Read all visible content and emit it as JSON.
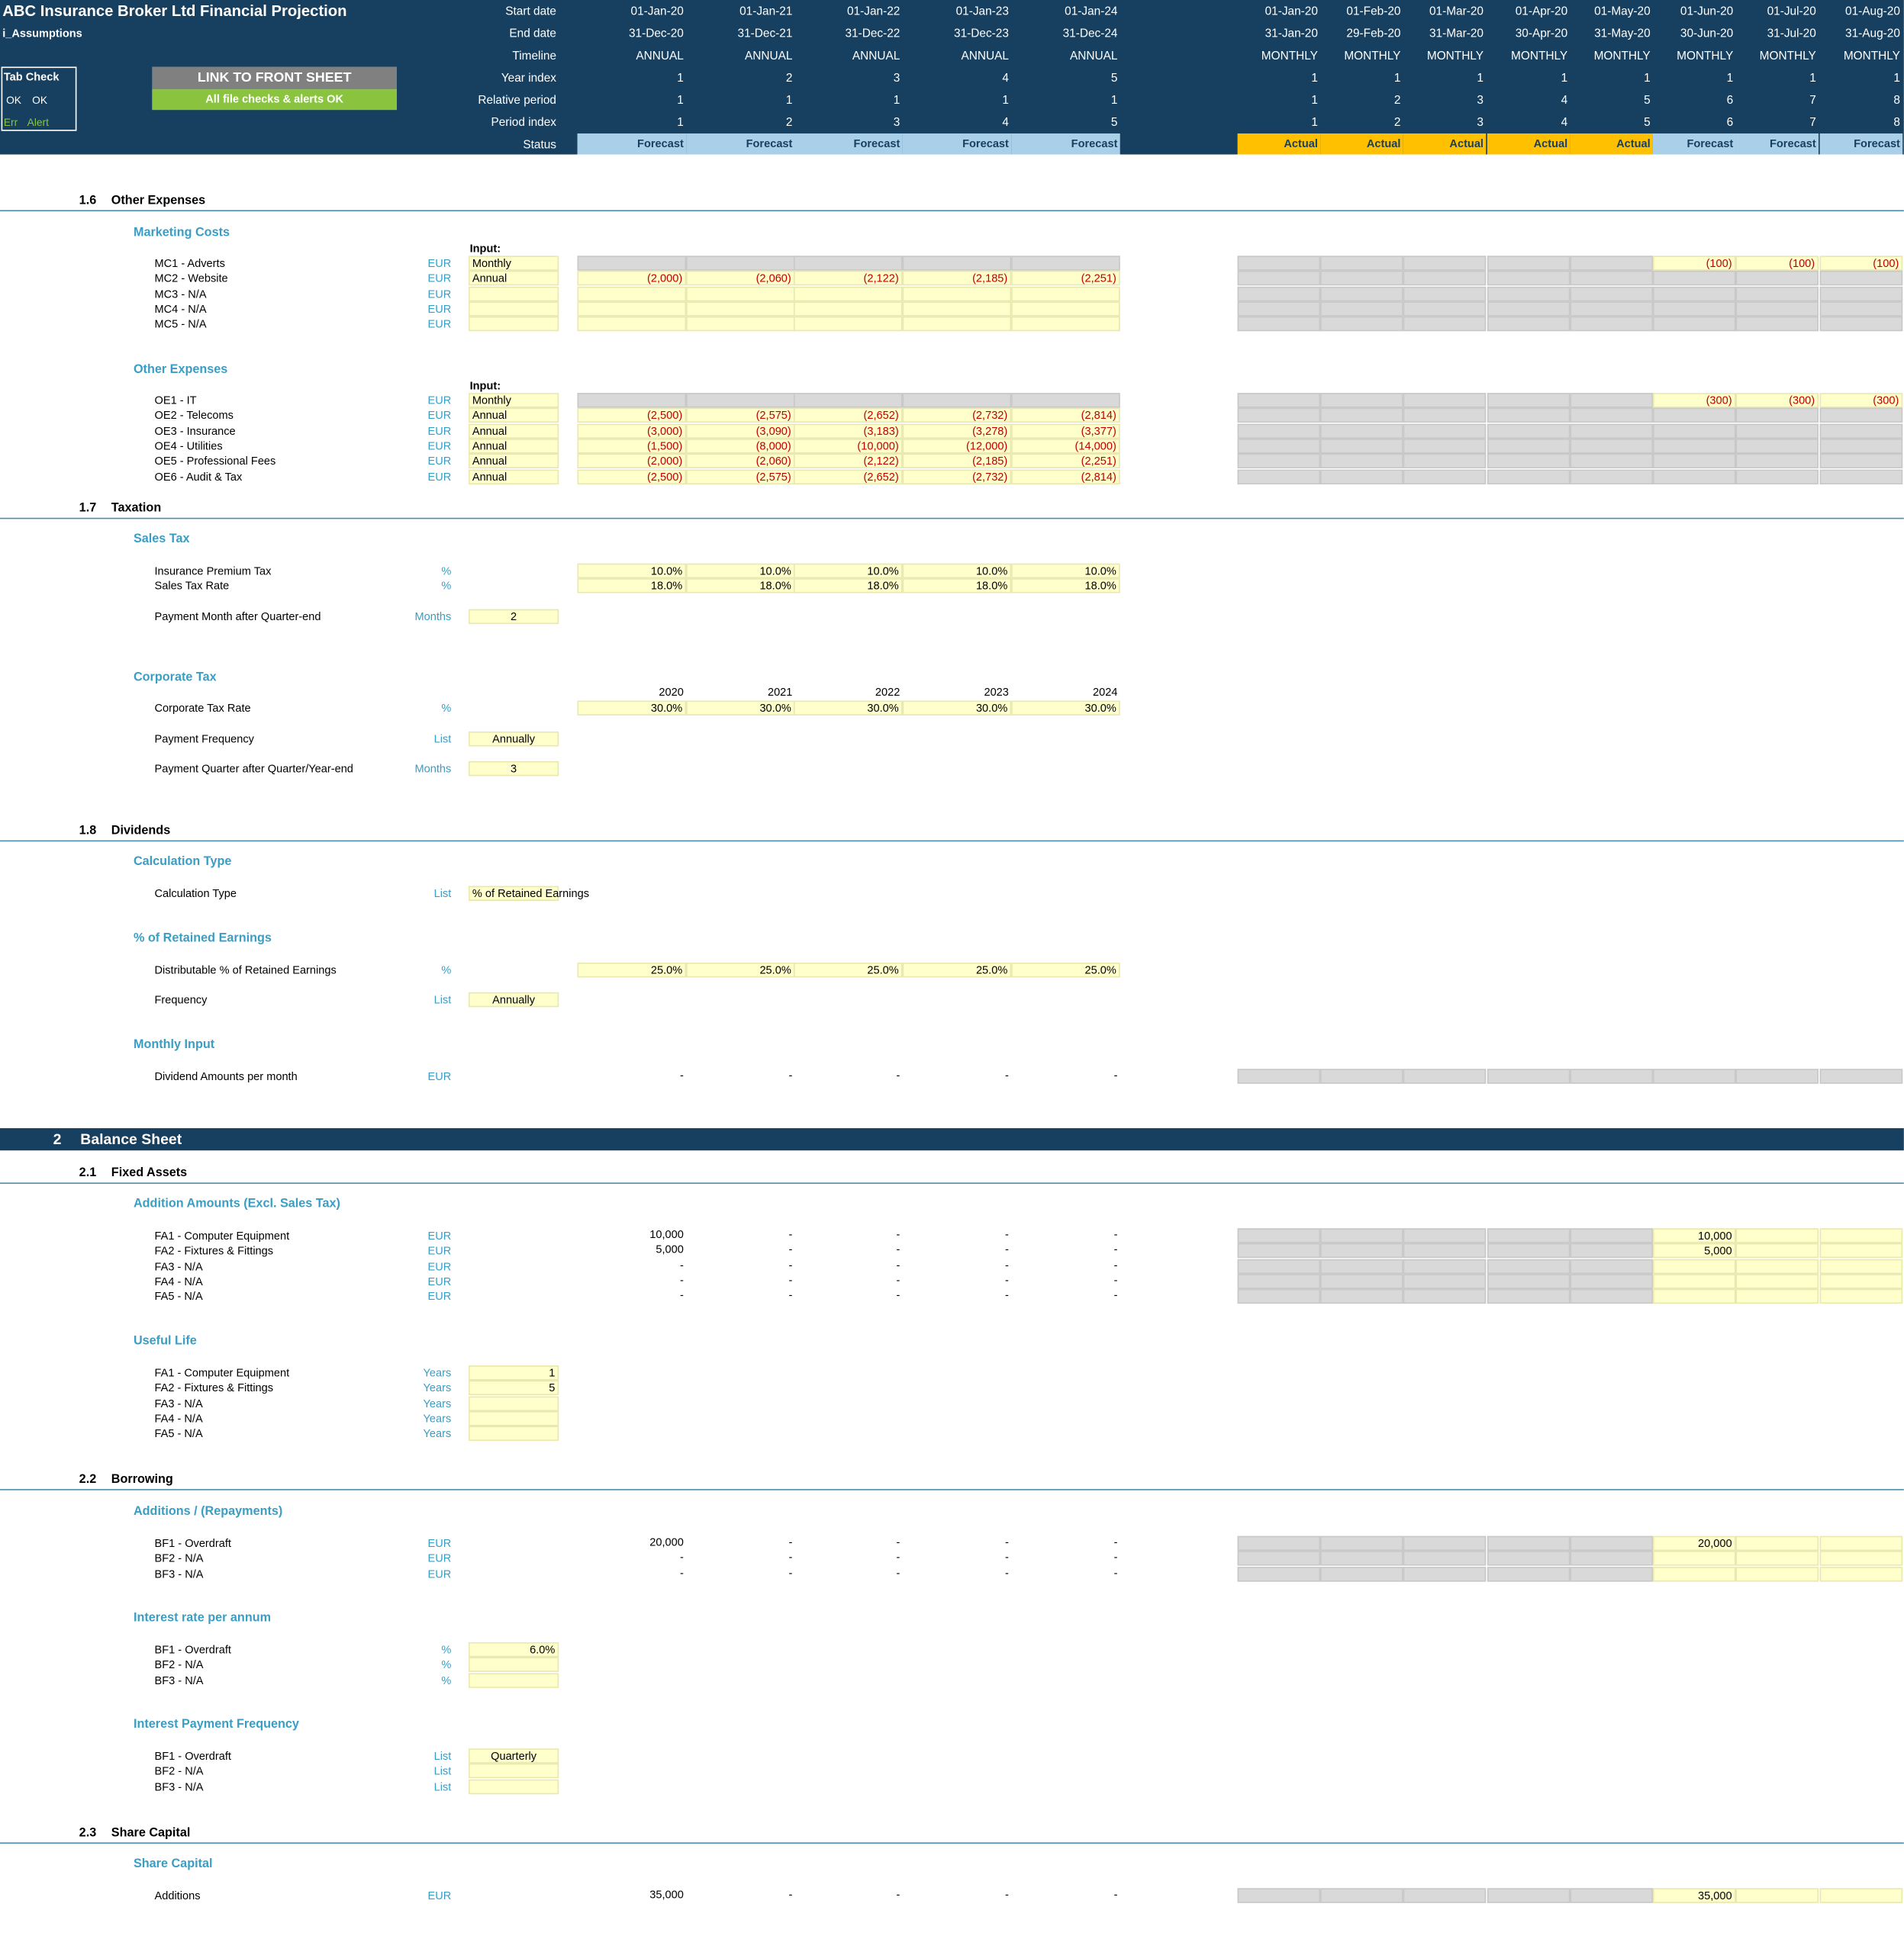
{
  "header": {
    "title": "ABC Insurance Broker Ltd Financial Projection",
    "sheet": "i_Assumptions",
    "tab_check": {
      "title": "Tab Check",
      "ok1": "OK",
      "ok2": "OK",
      "err": "Err",
      "alert": "Alert"
    },
    "link_button": "LINK TO FRONT SHEET",
    "checks_ok": "All file checks & alerts OK",
    "row_labels": [
      "Start date",
      "End date",
      "Timeline",
      "Year index",
      "Relative period",
      "Period index",
      "Status"
    ],
    "annual": [
      {
        "start": "01-Jan-20",
        "end": "31-Dec-20",
        "timeline": "ANNUAL",
        "year": "1",
        "rel": "1",
        "idx": "1",
        "status": "Forecast"
      },
      {
        "start": "01-Jan-21",
        "end": "31-Dec-21",
        "timeline": "ANNUAL",
        "year": "2",
        "rel": "1",
        "idx": "2",
        "status": "Forecast"
      },
      {
        "start": "01-Jan-22",
        "end": "31-Dec-22",
        "timeline": "ANNUAL",
        "year": "3",
        "rel": "1",
        "idx": "3",
        "status": "Forecast"
      },
      {
        "start": "01-Jan-23",
        "end": "31-Dec-23",
        "timeline": "ANNUAL",
        "year": "4",
        "rel": "1",
        "idx": "4",
        "status": "Forecast"
      },
      {
        "start": "01-Jan-24",
        "end": "31-Dec-24",
        "timeline": "ANNUAL",
        "year": "5",
        "rel": "1",
        "idx": "5",
        "status": "Forecast"
      }
    ],
    "monthly": [
      {
        "start": "01-Jan-20",
        "end": "31-Jan-20",
        "timeline": "MONTHLY",
        "year": "1",
        "rel": "1",
        "idx": "1",
        "status": "Actual"
      },
      {
        "start": "01-Feb-20",
        "end": "29-Feb-20",
        "timeline": "MONTHLY",
        "year": "1",
        "rel": "2",
        "idx": "2",
        "status": "Actual"
      },
      {
        "start": "01-Mar-20",
        "end": "31-Mar-20",
        "timeline": "MONTHLY",
        "year": "1",
        "rel": "3",
        "idx": "3",
        "status": "Actual"
      },
      {
        "start": "01-Apr-20",
        "end": "30-Apr-20",
        "timeline": "MONTHLY",
        "year": "1",
        "rel": "4",
        "idx": "4",
        "status": "Actual"
      },
      {
        "start": "01-May-20",
        "end": "31-May-20",
        "timeline": "MONTHLY",
        "year": "1",
        "rel": "5",
        "idx": "5",
        "status": "Actual"
      },
      {
        "start": "01-Jun-20",
        "end": "30-Jun-20",
        "timeline": "MONTHLY",
        "year": "1",
        "rel": "6",
        "idx": "6",
        "status": "Forecast"
      },
      {
        "start": "01-Jul-20",
        "end": "31-Jul-20",
        "timeline": "MONTHLY",
        "year": "1",
        "rel": "7",
        "idx": "7",
        "status": "Forecast"
      },
      {
        "start": "01-Aug-20",
        "end": "31-Aug-20",
        "timeline": "MONTHLY",
        "year": "1",
        "rel": "8",
        "idx": "8",
        "status": "Forecast"
      }
    ]
  },
  "s16": {
    "num": "1.6",
    "title": "Other Expenses",
    "marketing": {
      "title": "Marketing Costs",
      "input_label": "Input:",
      "rows": [
        {
          "label": "MC1 - Adverts",
          "unit": "EUR",
          "input": "Monthly",
          "annual": [
            "",
            "",
            "",
            "",
            ""
          ],
          "monthly_fc": [
            "(100)",
            "(100)",
            "(100)"
          ]
        },
        {
          "label": "MC2 - Website",
          "unit": "EUR",
          "input": "Annual",
          "annual": [
            "(2,000)",
            "(2,060)",
            "(2,122)",
            "(2,185)",
            "(2,251)"
          ],
          "monthly_fc": [
            "",
            "",
            ""
          ]
        },
        {
          "label": "MC3 - N/A",
          "unit": "EUR",
          "input": "",
          "annual": [
            "",
            "",
            "",
            "",
            ""
          ],
          "monthly_fc": [
            "",
            "",
            ""
          ]
        },
        {
          "label": "MC4 - N/A",
          "unit": "EUR",
          "input": "",
          "annual": [
            "",
            "",
            "",
            "",
            ""
          ],
          "monthly_fc": [
            "",
            "",
            ""
          ]
        },
        {
          "label": "MC5 - N/A",
          "unit": "EUR",
          "input": "",
          "annual": [
            "",
            "",
            "",
            "",
            ""
          ],
          "monthly_fc": [
            "",
            "",
            ""
          ]
        }
      ]
    },
    "other": {
      "title": "Other Expenses",
      "input_label": "Input:",
      "rows": [
        {
          "label": "OE1 - IT",
          "unit": "EUR",
          "input": "Monthly",
          "annual": [
            "",
            "",
            "",
            "",
            ""
          ],
          "monthly_fc": [
            "(300)",
            "(300)",
            "(300)"
          ]
        },
        {
          "label": "OE2 - Telecoms",
          "unit": "EUR",
          "input": "Annual",
          "annual": [
            "(2,500)",
            "(2,575)",
            "(2,652)",
            "(2,732)",
            "(2,814)"
          ],
          "monthly_fc": [
            "",
            "",
            ""
          ]
        },
        {
          "label": "OE3 - Insurance",
          "unit": "EUR",
          "input": "Annual",
          "annual": [
            "(3,000)",
            "(3,090)",
            "(3,183)",
            "(3,278)",
            "(3,377)"
          ],
          "monthly_fc": [
            "",
            "",
            ""
          ]
        },
        {
          "label": "OE4 - Utilities",
          "unit": "EUR",
          "input": "Annual",
          "annual": [
            "(1,500)",
            "(8,000)",
            "(10,000)",
            "(12,000)",
            "(14,000)"
          ],
          "monthly_fc": [
            "",
            "",
            ""
          ]
        },
        {
          "label": "OE5 - Professional Fees",
          "unit": "EUR",
          "input": "Annual",
          "annual": [
            "(2,000)",
            "(2,060)",
            "(2,122)",
            "(2,185)",
            "(2,251)"
          ],
          "monthly_fc": [
            "",
            "",
            ""
          ]
        },
        {
          "label": "OE6 - Audit & Tax",
          "unit": "EUR",
          "input": "Annual",
          "annual": [
            "(2,500)",
            "(2,575)",
            "(2,652)",
            "(2,732)",
            "(2,814)"
          ],
          "monthly_fc": [
            "",
            "",
            ""
          ]
        }
      ]
    }
  },
  "s17": {
    "num": "1.7",
    "title": "Taxation",
    "sales_tax": {
      "title": "Sales Tax",
      "ipt": {
        "label": "Insurance Premium Tax",
        "unit": "%",
        "values": [
          "10.0%",
          "10.0%",
          "10.0%",
          "10.0%",
          "10.0%"
        ]
      },
      "str": {
        "label": "Sales Tax Rate",
        "unit": "%",
        "values": [
          "18.0%",
          "18.0%",
          "18.0%",
          "18.0%",
          "18.0%"
        ]
      },
      "pay": {
        "label": "Payment Month after Quarter-end",
        "unit": "Months",
        "value": "2"
      }
    },
    "corp_tax": {
      "title": "Corporate Tax",
      "years": [
        "2020",
        "2021",
        "2022",
        "2023",
        "2024"
      ],
      "rate": {
        "label": "Corporate Tax Rate",
        "unit": "%",
        "values": [
          "30.0%",
          "30.0%",
          "30.0%",
          "30.0%",
          "30.0%"
        ]
      },
      "freq": {
        "label": "Payment Frequency",
        "unit": "List",
        "value": "Annually"
      },
      "quarter": {
        "label": "Payment Quarter after Quarter/Year-end",
        "unit": "Months",
        "value": "3"
      }
    }
  },
  "s18": {
    "num": "1.8",
    "title": "Dividends",
    "calc": {
      "title": "Calculation Type",
      "label": "Calculation Type",
      "unit": "List",
      "value": "% of Retained Earnings"
    },
    "retained": {
      "title": "% of Retained Earnings",
      "dist": {
        "label": "Distributable % of Retained Earnings",
        "unit": "%",
        "values": [
          "25.0%",
          "25.0%",
          "25.0%",
          "25.0%",
          "25.0%"
        ]
      },
      "freq": {
        "label": "Frequency",
        "unit": "List",
        "value": "Annually"
      }
    },
    "monthly": {
      "title": "Monthly Input",
      "label": "Dividend Amounts per month",
      "unit": "EUR",
      "values": [
        "-",
        "-",
        "-",
        "-",
        "-"
      ]
    }
  },
  "s2": {
    "num": "2",
    "title": "Balance Sheet",
    "fa": {
      "num": "2.1",
      "title": "Fixed Assets",
      "add_title": "Addition Amounts (Excl. Sales Tax)",
      "rows": [
        {
          "label": "FA1 - Computer Equipment",
          "unit": "EUR",
          "annual": [
            "10,000",
            "-",
            "-",
            "-",
            "-"
          ],
          "monthly_fc": [
            "10,000",
            "",
            ""
          ]
        },
        {
          "label": "FA2 - Fixtures & Fittings",
          "unit": "EUR",
          "annual": [
            "5,000",
            "-",
            "-",
            "-",
            "-"
          ],
          "monthly_fc": [
            "5,000",
            "",
            ""
          ]
        },
        {
          "label": "FA3 - N/A",
          "unit": "EUR",
          "annual": [
            "-",
            "-",
            "-",
            "-",
            "-"
          ],
          "monthly_fc": [
            "",
            "",
            ""
          ]
        },
        {
          "label": "FA4 - N/A",
          "unit": "EUR",
          "annual": [
            "-",
            "-",
            "-",
            "-",
            "-"
          ],
          "monthly_fc": [
            "",
            "",
            ""
          ]
        },
        {
          "label": "FA5 - N/A",
          "unit": "EUR",
          "annual": [
            "-",
            "-",
            "-",
            "-",
            "-"
          ],
          "monthly_fc": [
            "",
            "",
            ""
          ]
        }
      ],
      "life_title": "Useful Life",
      "life": [
        {
          "label": "FA1 - Computer Equipment",
          "unit": "Years",
          "value": "1"
        },
        {
          "label": "FA2 - Fixtures & Fittings",
          "unit": "Years",
          "value": "5"
        },
        {
          "label": "FA3 - N/A",
          "unit": "Years",
          "value": ""
        },
        {
          "label": "FA4 - N/A",
          "unit": "Years",
          "value": ""
        },
        {
          "label": "FA5 - N/A",
          "unit": "Years",
          "value": ""
        }
      ]
    },
    "borrow": {
      "num": "2.2",
      "title": "Borrowing",
      "add_title": "Additions / (Repayments)",
      "rows": [
        {
          "label": "BF1 - Overdraft",
          "unit": "EUR",
          "annual": [
            "20,000",
            "-",
            "-",
            "-",
            "-"
          ],
          "monthly_fc": [
            "20,000",
            "",
            ""
          ]
        },
        {
          "label": "BF2 - N/A",
          "unit": "EUR",
          "annual": [
            "-",
            "-",
            "-",
            "-",
            "-"
          ],
          "monthly_fc": [
            "",
            "",
            ""
          ]
        },
        {
          "label": "BF3 - N/A",
          "unit": "EUR",
          "annual": [
            "-",
            "-",
            "-",
            "-",
            "-"
          ],
          "monthly_fc": [
            "",
            "",
            ""
          ]
        }
      ],
      "rate_title": "Interest rate per annum",
      "rates": [
        {
          "label": "BF1 - Overdraft",
          "unit": "%",
          "value": "6.0%"
        },
        {
          "label": "BF2 - N/A",
          "unit": "%",
          "value": ""
        },
        {
          "label": "BF3 - N/A",
          "unit": "%",
          "value": ""
        }
      ],
      "freq_title": "Interest Payment Frequency",
      "freqs": [
        {
          "label": "BF1 - Overdraft",
          "unit": "List",
          "value": "Quarterly"
        },
        {
          "label": "BF2 - N/A",
          "unit": "List",
          "value": ""
        },
        {
          "label": "BF3 - N/A",
          "unit": "List",
          "value": ""
        }
      ]
    },
    "share": {
      "num": "2.3",
      "title": "Share Capital",
      "sub": "Share Capital",
      "row": {
        "label": "Additions",
        "unit": "EUR",
        "annual": [
          "35,000",
          "-",
          "-",
          "-",
          "-"
        ],
        "monthly_fc": [
          "35,000",
          "",
          ""
        ]
      }
    }
  }
}
